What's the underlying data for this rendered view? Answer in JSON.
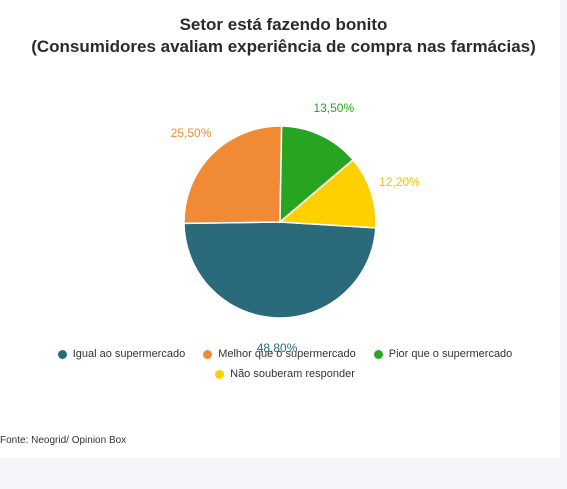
{
  "title_line1": "Setor está fazendo bonito",
  "title_line2": "(Consumidores avaliam experiência de compra nas farmácias)",
  "source": "Fonte: Neogrid/ Opinion Box",
  "chart_data": {
    "type": "pie",
    "labels": [
      "Igual ao supermercado",
      "Melhor que o supermercado",
      "Pior que o supermercado",
      "Não souberam responder"
    ],
    "values": [
      48.8,
      25.5,
      13.5,
      12.2
    ],
    "value_labels": [
      "48,80%",
      "25,50%",
      "13,50%",
      "12,20%"
    ],
    "colors": [
      "#2a6a7a",
      "#f08a34",
      "#28a520",
      "#ffd000"
    ],
    "legend_placement": "bottom"
  }
}
